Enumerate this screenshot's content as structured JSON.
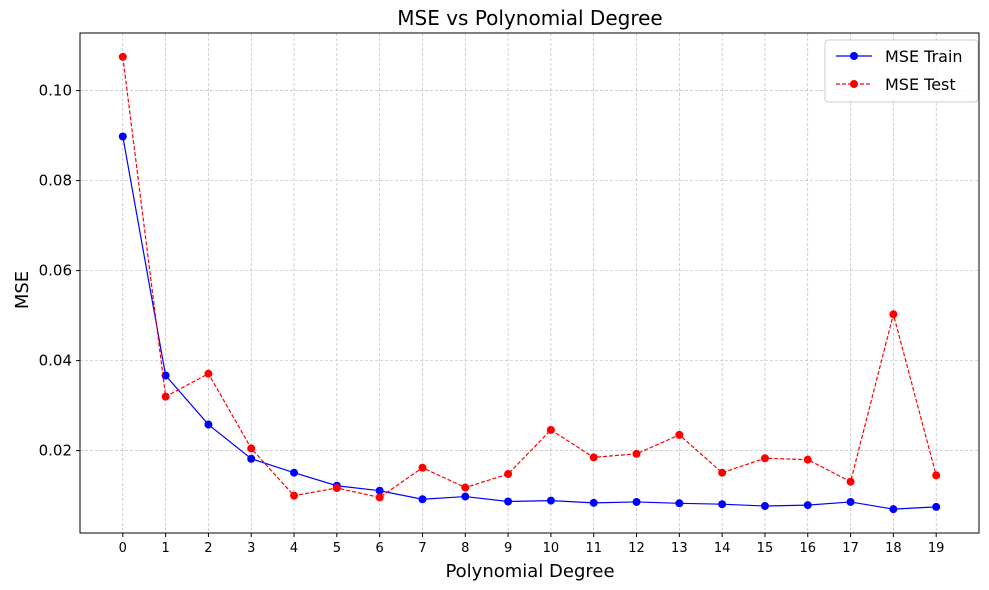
{
  "chart_data": {
    "type": "line",
    "title": "MSE vs Polynomial Degree",
    "xlabel": "Polynomial Degree",
    "ylabel": "MSE",
    "x": [
      0,
      1,
      2,
      3,
      4,
      5,
      6,
      7,
      8,
      9,
      10,
      11,
      12,
      13,
      14,
      15,
      16,
      17,
      18,
      19
    ],
    "xlim": [
      -1,
      20
    ],
    "ylim": [
      0.0017,
      0.1128
    ],
    "yticks": [
      "0.02",
      "0.04",
      "0.06",
      "0.08",
      "0.10"
    ],
    "grid": true,
    "legend_position": "top-right",
    "series": [
      {
        "name": "MSE Train",
        "color": "#0000ff",
        "line_style": "solid",
        "marker": "circle",
        "values": [
          0.0898,
          0.0367,
          0.0258,
          0.0182,
          0.0151,
          0.0122,
          0.0111,
          0.0092,
          0.0098,
          0.0087,
          0.0089,
          0.0084,
          0.0086,
          0.0083,
          0.0081,
          0.0077,
          0.0079,
          0.0086,
          0.007,
          0.0075
        ]
      },
      {
        "name": "MSE Test",
        "color": "#ff0000",
        "line_style": "dashed",
        "marker": "circle",
        "values": [
          0.1075,
          0.032,
          0.0371,
          0.0205,
          0.01,
          0.0117,
          0.0096,
          0.0162,
          0.0118,
          0.0148,
          0.0246,
          0.0185,
          0.0193,
          0.0235,
          0.0151,
          0.0183,
          0.018,
          0.0131,
          0.0503,
          0.0145
        ]
      }
    ]
  }
}
